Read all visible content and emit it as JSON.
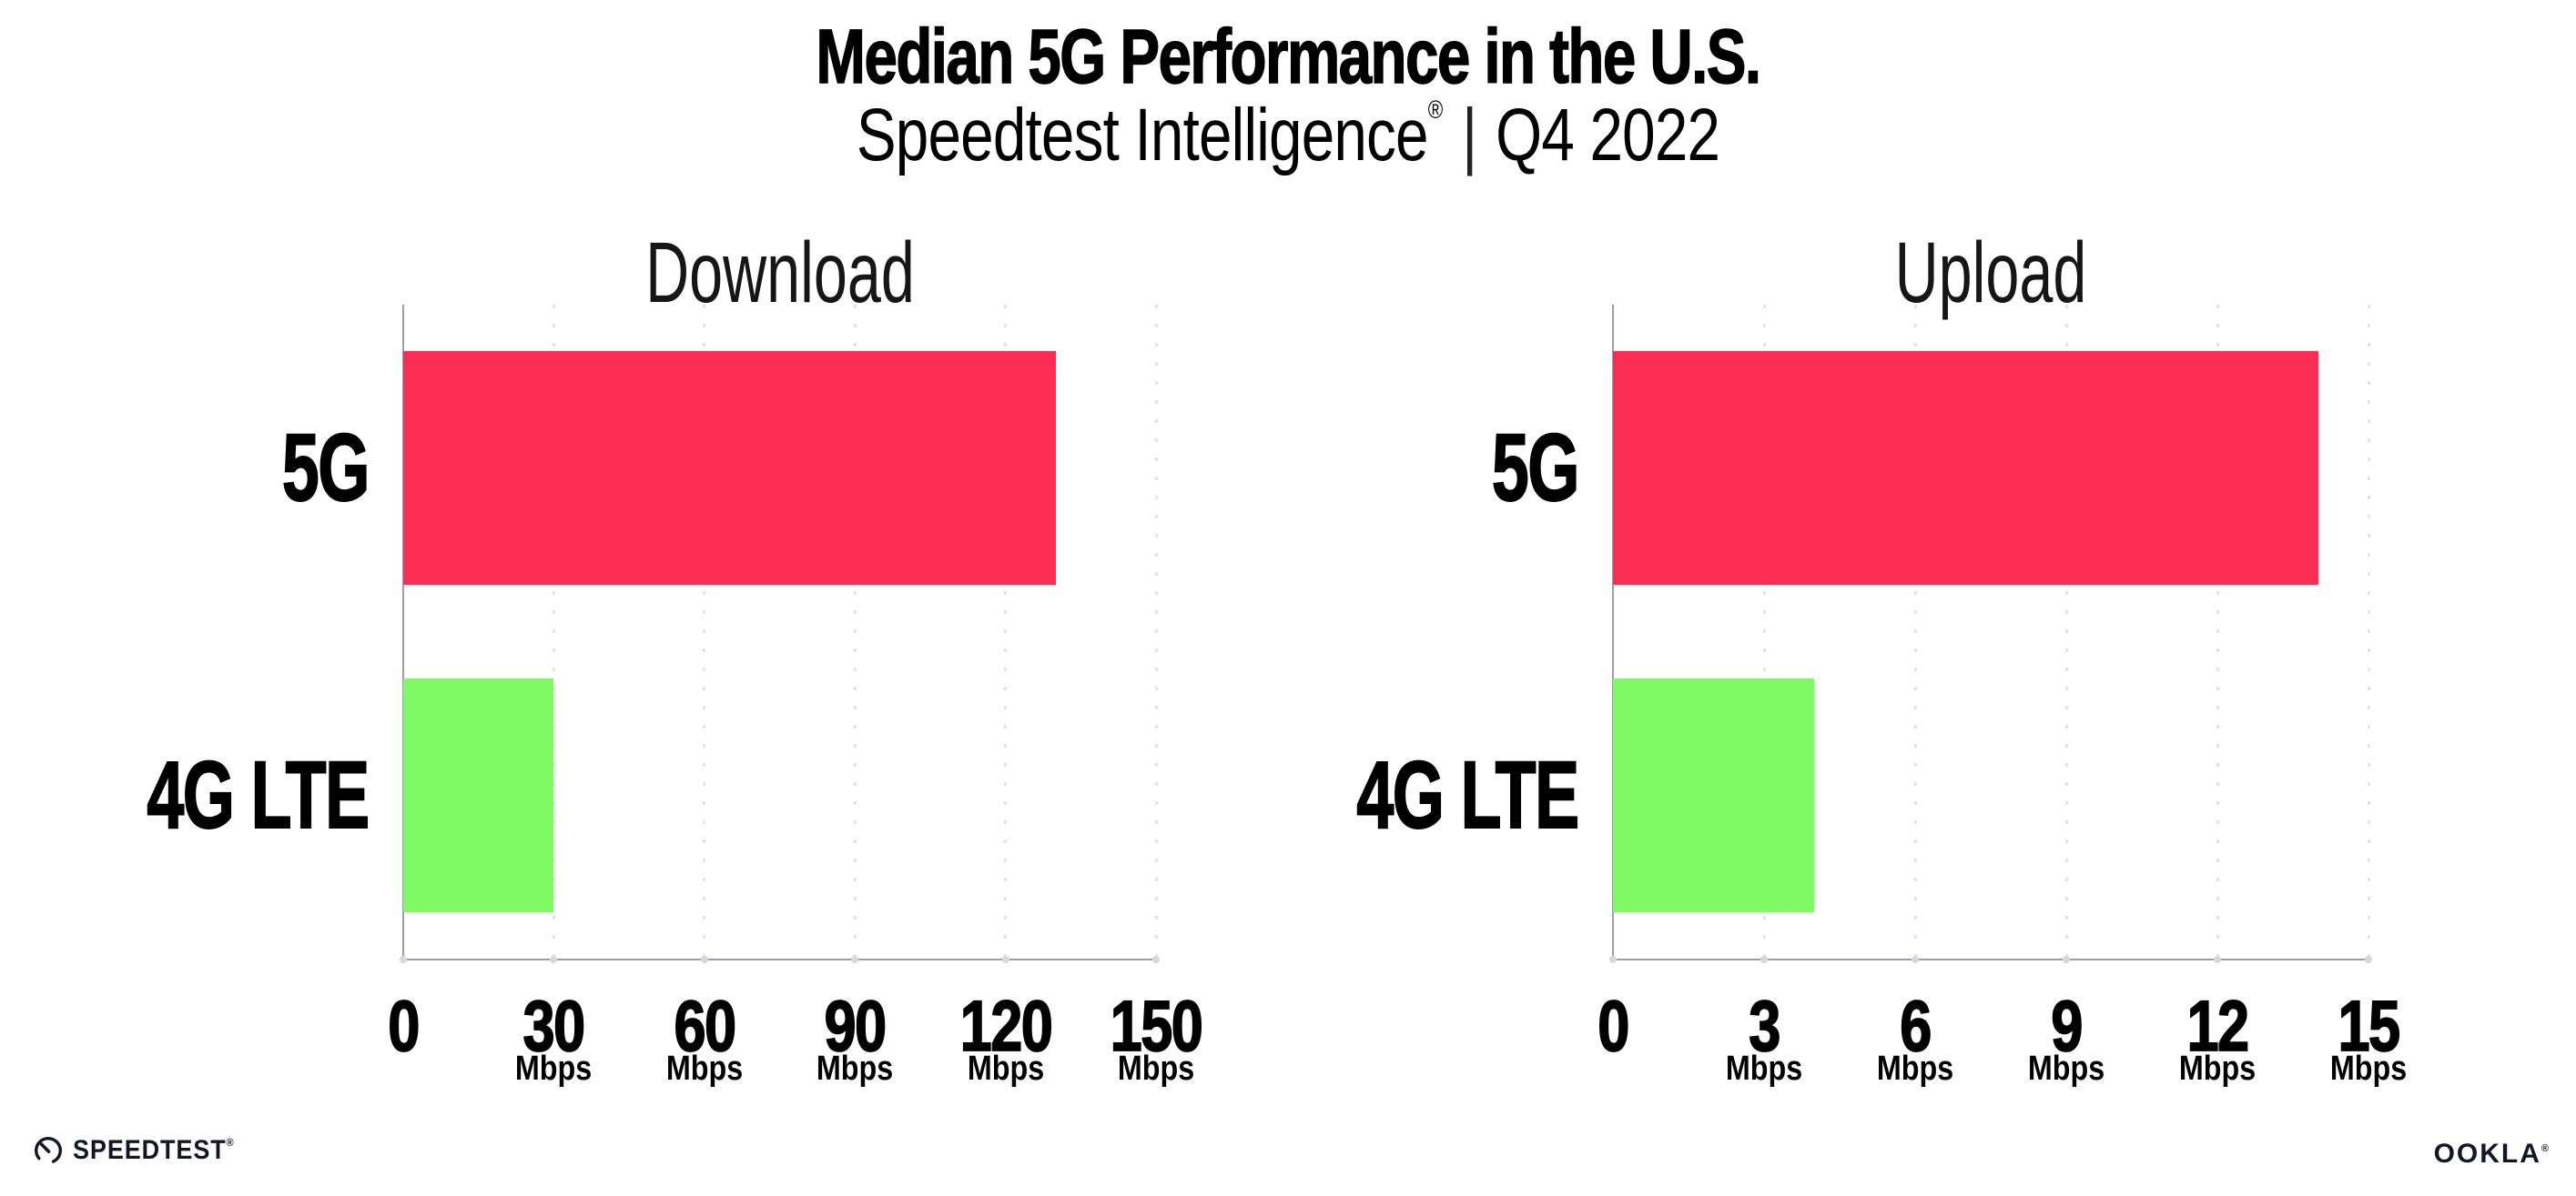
{
  "header": {
    "title": "Median 5G Performance in the U.S.",
    "subtitle_brand": "Speedtest Intelligence",
    "subtitle_mark": "®",
    "subtitle_separator": "|",
    "subtitle_period": "Q4 2022"
  },
  "chart_data": [
    {
      "type": "bar",
      "orientation": "horizontal",
      "title": "Download",
      "categories": [
        "5G",
        "4G LTE"
      ],
      "values": [
        130,
        30
      ],
      "unit": "Mbps",
      "xlim": [
        0,
        150
      ],
      "xticks": [
        0,
        30,
        60,
        90,
        120,
        150
      ],
      "tick_unit_label": "Mbps",
      "grid": "dotted-vertical",
      "legend": "none",
      "bar_colors": [
        "#FB2D55",
        "#80FA64"
      ]
    },
    {
      "type": "bar",
      "orientation": "horizontal",
      "title": "Upload",
      "categories": [
        "5G",
        "4G LTE"
      ],
      "values": [
        14,
        4
      ],
      "unit": "Mbps",
      "xlim": [
        0,
        15
      ],
      "xticks": [
        0,
        3,
        6,
        9,
        12,
        15
      ],
      "tick_unit_label": "Mbps",
      "grid": "dotted-vertical",
      "legend": "none",
      "bar_colors": [
        "#FB2D55",
        "#80FA64"
      ]
    }
  ],
  "footer": {
    "speedtest_logo": "SPEEDTEST",
    "speedtest_mark": "®",
    "ookla_logo": "OOKLA",
    "ookla_mark": "®"
  },
  "colors": {
    "bar_5g": "#FB2D55",
    "bar_4g_lte": "#80FA64",
    "gridline": "#E2E2EC",
    "axis": "#9D9DA7",
    "tick_dot": "#D7D7E1",
    "text": "#000000",
    "logo_text": "#141526",
    "background": "#FFFFFF"
  }
}
